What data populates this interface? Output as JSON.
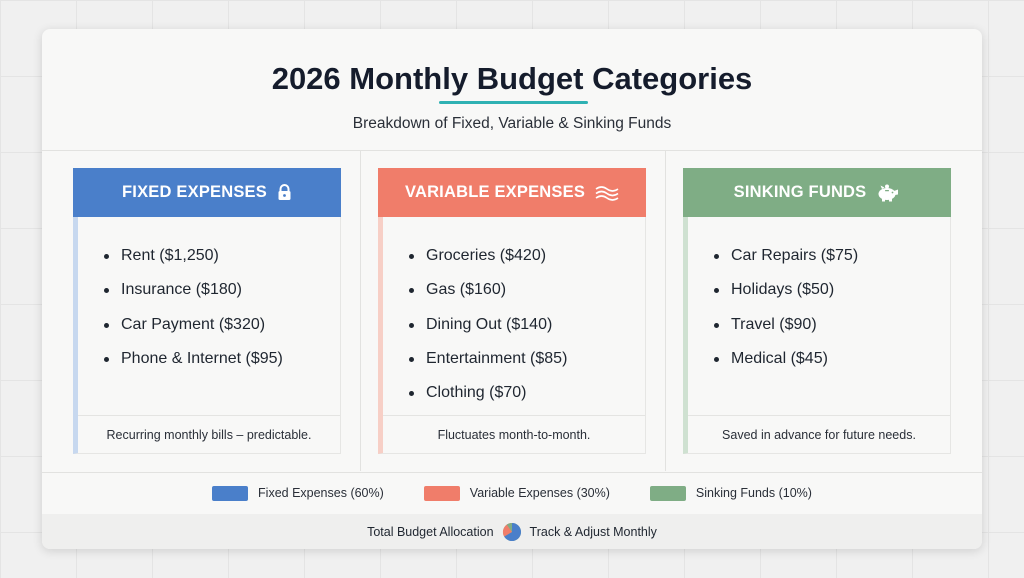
{
  "header": {
    "title": "2026 Monthly Budget Categories",
    "subtitle": "Breakdown of Fixed, Variable & Sinking Funds"
  },
  "columns": [
    {
      "title": "FIXED EXPENSES",
      "icon": "lock-icon",
      "color": "#4a7fca",
      "accent": "#c7d8ef",
      "items": [
        "Rent ($1,250)",
        "Insurance ($180)",
        "Car Payment ($320)",
        "Phone & Internet ($95)"
      ],
      "footer": "Recurring monthly bills – predictable."
    },
    {
      "title": "VARIABLE EXPENSES",
      "icon": "wave-icon",
      "color": "#f07d6a",
      "accent": "#f7cfc6",
      "items": [
        "Groceries ($420)",
        "Gas ($160)",
        "Dining Out ($140)",
        "Entertainment ($85)",
        "Clothing ($70)"
      ],
      "footer": "Fluctuates month-to-month."
    },
    {
      "title": "SINKING FUNDS",
      "icon": "piggy-bank-icon",
      "color": "#7fad85",
      "accent": "#cfe1d1",
      "items": [
        "Car Repairs ($75)",
        "Holidays ($50)",
        "Travel ($90)",
        "Medical ($45)"
      ],
      "footer": "Saved in advance for future needs."
    }
  ],
  "legend": [
    {
      "label": "Fixed Expenses (60%)",
      "color": "#4a7fca"
    },
    {
      "label": "Variable Expenses (30%)",
      "color": "#f07d6a"
    },
    {
      "label": "Sinking Funds (10%)",
      "color": "#7fad85"
    }
  ],
  "footer": {
    "left": "Total Budget Allocation",
    "icon": "pie-chart-icon",
    "right": "Track & Adjust Monthly"
  }
}
